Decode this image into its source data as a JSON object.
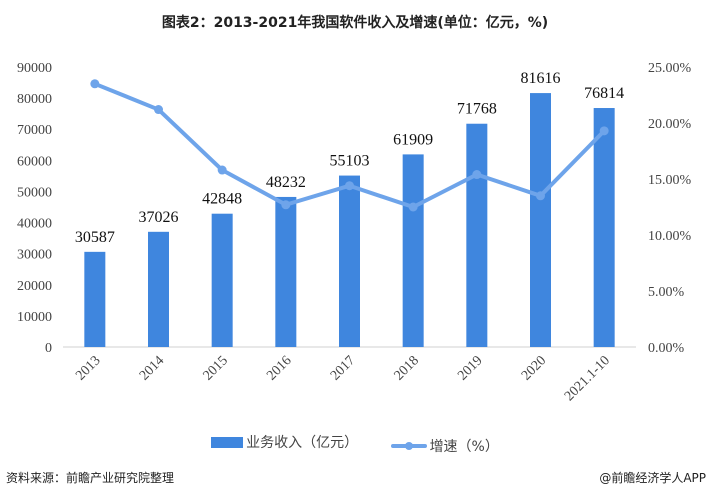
{
  "chart_data": {
    "type": "bar+line",
    "title": "图表2：2013-2021年我国软件收入及增速(单位：亿元，%)",
    "categories": [
      "2013",
      "2014",
      "2015",
      "2016",
      "2017",
      "2018",
      "2019",
      "2020",
      "2021.1-10"
    ],
    "series": [
      {
        "name": "业务收入（亿元）",
        "type": "bar",
        "axis": "left",
        "color": "#3f86de",
        "values": [
          30587,
          37026,
          42848,
          48232,
          55103,
          61909,
          71768,
          81616,
          76814
        ]
      },
      {
        "name": "增速（%）",
        "type": "line",
        "axis": "right",
        "color": "#6ea4ea",
        "values": [
          23.5,
          21.2,
          15.8,
          12.7,
          14.4,
          12.5,
          15.4,
          13.5,
          19.3
        ]
      }
    ],
    "left_axis": {
      "range": [
        0,
        90000
      ],
      "ticks": [
        "0",
        "10000",
        "20000",
        "30000",
        "40000",
        "50000",
        "60000",
        "70000",
        "80000",
        "90000"
      ]
    },
    "right_axis": {
      "range": [
        0,
        25
      ],
      "ticks": [
        "0.00%",
        "5.00%",
        "10.00%",
        "15.00%",
        "20.00%",
        "25.00%"
      ]
    },
    "grid": false,
    "legend_placement": "bottom"
  },
  "footer": {
    "source": "资料来源：前瞻产业研究院整理",
    "brand": "@前瞻经济学人APP"
  }
}
